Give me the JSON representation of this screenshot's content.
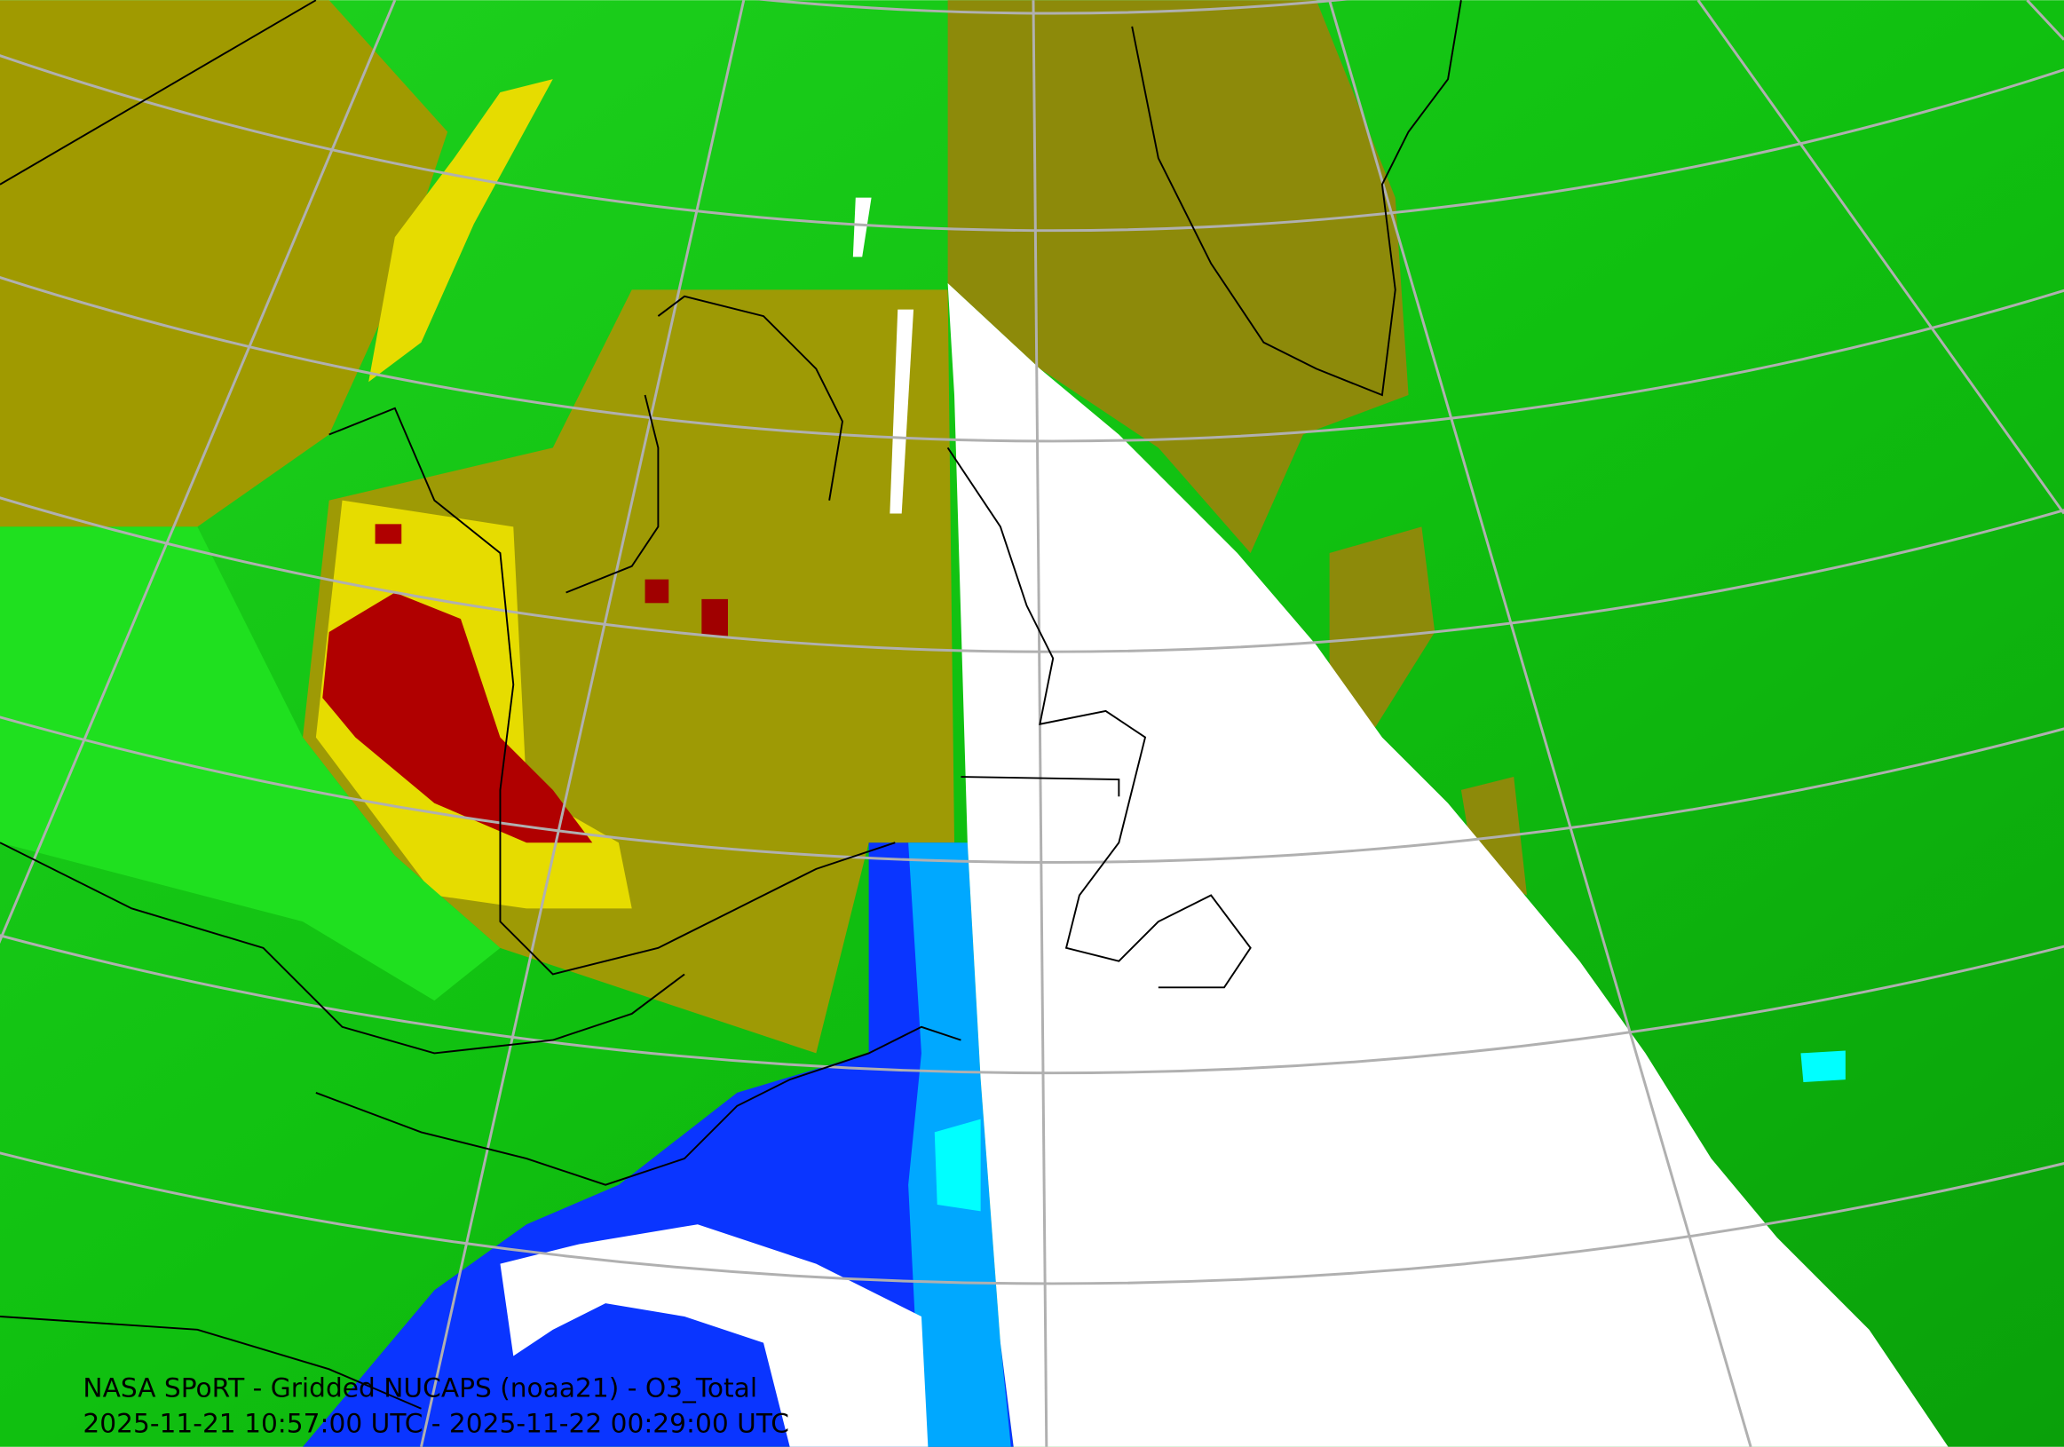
{
  "caption": {
    "title": "NASA SPoRT - Gridded NUCAPS (noaa21) - O3_Total",
    "time_range": "2025-11-21 10:57:00 UTC - 2025-11-22 00:29:00 UTC"
  }
}
